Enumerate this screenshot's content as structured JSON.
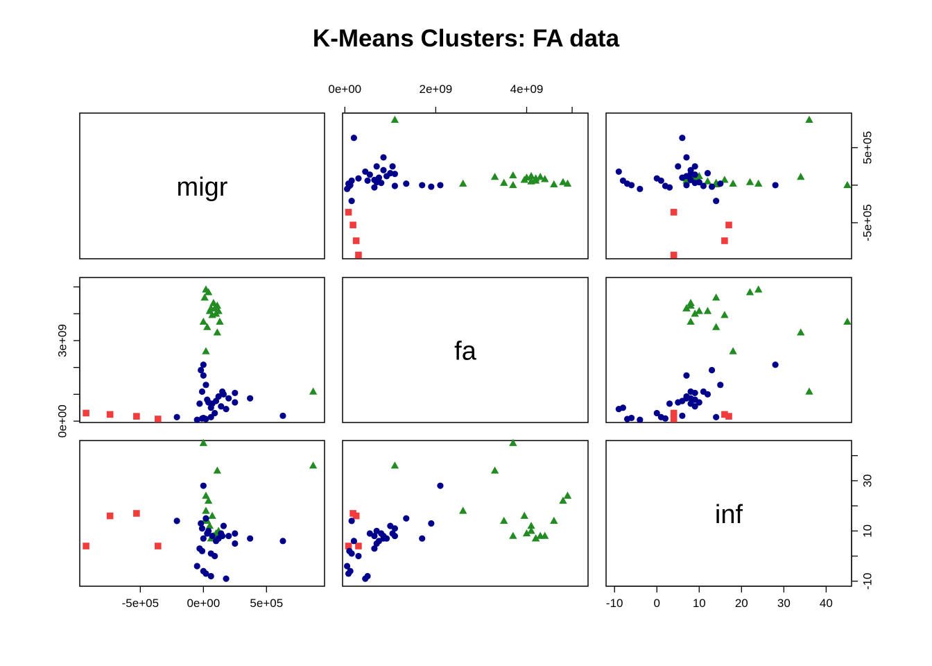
{
  "chart_data": {
    "type": "scatter",
    "title": "K-Means Clusters: FA data",
    "plot_kind": "scatterplot matrix",
    "variables": [
      "migr",
      "fa",
      "inf"
    ],
    "clusters": [
      {
        "id": 1,
        "color": "#00008B",
        "marker": "circle"
      },
      {
        "id": 2,
        "color": "#228B22",
        "marker": "triangle"
      },
      {
        "id": 3,
        "color": "#F03C3C",
        "marker": "square"
      }
    ],
    "ticks": {
      "migr": {
        "values": [
          -500000,
          0,
          500000
        ],
        "labels": [
          "-5e+05",
          "0e+00",
          "5e+05"
        ],
        "side": "bottom,right"
      },
      "fa": {
        "values": [
          0,
          2000000000,
          4000000000
        ],
        "labels": [
          "0e+00",
          "2e+09",
          "4e+09"
        ],
        "side": "top"
      },
      "fa_left": {
        "values": [
          0,
          3000000000
        ],
        "labels": [
          "0e+00",
          "3e+09"
        ],
        "side": "left"
      },
      "inf": {
        "values": [
          -10,
          0,
          10,
          20,
          30,
          40
        ],
        "labels": [
          "-10",
          "0",
          "10",
          "20",
          "30",
          "40"
        ],
        "side": "bottom,right"
      },
      "inf_right_labels": [
        "-10",
        "10",
        "30"
      ]
    },
    "ranges": {
      "migr": [
        -980000,
        960000
      ],
      "fa": [
        -50000000,
        5350000000
      ],
      "inf": [
        -12,
        46
      ]
    },
    "points": [
      {
        "migr": -360000,
        "fa": 80000000,
        "inf": 4,
        "cluster": 3
      },
      {
        "migr": -530000,
        "fa": 180000000,
        "inf": 17,
        "cluster": 3
      },
      {
        "migr": -740000,
        "fa": 250000000,
        "inf": 16,
        "cluster": 3
      },
      {
        "migr": -930000,
        "fa": 300000000,
        "inf": 4,
        "cluster": 3
      },
      {
        "migr": 20000,
        "fa": 4900000000,
        "inf": 24,
        "cluster": 2
      },
      {
        "migr": 40000,
        "fa": 4800000000,
        "inf": 22,
        "cluster": 2
      },
      {
        "migr": 10000,
        "fa": 4600000000,
        "inf": 14,
        "cluster": 2
      },
      {
        "migr": 80000,
        "fa": 4400000000,
        "inf": 8,
        "cluster": 2
      },
      {
        "migr": 60000,
        "fa": 4200000000,
        "inf": 7,
        "cluster": 2
      },
      {
        "migr": 100000,
        "fa": 4000000000,
        "inf": 9,
        "cluster": 2
      },
      {
        "migr": 120000,
        "fa": 4100000000,
        "inf": 10,
        "cluster": 2
      },
      {
        "migr": 90000,
        "fa": 4200000000,
        "inf": 7,
        "cluster": 2
      },
      {
        "migr": 70000,
        "fa": 3950000000,
        "inf": 16,
        "cluster": 2
      },
      {
        "migr": 110000,
        "fa": 4300000000,
        "inf": 8,
        "cluster": 2
      },
      {
        "migr": 50000,
        "fa": 4100000000,
        "inf": 12,
        "cluster": 2
      },
      {
        "migr": 130000,
        "fa": 3700000000,
        "inf": 8,
        "cluster": 2
      },
      {
        "migr": 0,
        "fa": 3700000000,
        "inf": 45,
        "cluster": 2
      },
      {
        "migr": 870000,
        "fa": 1100000000,
        "inf": 36,
        "cluster": 2
      },
      {
        "migr": 30000,
        "fa": 3500000000,
        "inf": 14,
        "cluster": 2
      },
      {
        "migr": 20000,
        "fa": 2600000000,
        "inf": 18,
        "cluster": 2
      },
      {
        "migr": 110000,
        "fa": 3300000000,
        "inf": 34,
        "cluster": 2
      },
      {
        "migr": 0,
        "fa": 2100000000,
        "inf": 28,
        "cluster": 1
      },
      {
        "migr": -20000,
        "fa": 1900000000,
        "inf": 13,
        "cluster": 1
      },
      {
        "migr": 0,
        "fa": 1700000000,
        "inf": 7,
        "cluster": 1
      },
      {
        "migr": 20000,
        "fa": 1350000000,
        "inf": 15,
        "cluster": 1
      },
      {
        "migr": -10000,
        "fa": 1100000000,
        "inf": 11,
        "cluster": 1
      },
      {
        "migr": 30000,
        "fa": 800000000,
        "inf": 9,
        "cluster": 1
      },
      {
        "migr": 70000,
        "fa": 650000000,
        "inf": 8,
        "cluster": 1
      },
      {
        "migr": 100000,
        "fa": 750000000,
        "inf": 6,
        "cluster": 1
      },
      {
        "migr": 120000,
        "fa": 920000000,
        "inf": 7,
        "cluster": 1
      },
      {
        "migr": 140000,
        "fa": 550000000,
        "inf": 9,
        "cluster": 1
      },
      {
        "migr": 160000,
        "fa": 1000000000,
        "inf": 12,
        "cluster": 1
      },
      {
        "migr": -30000,
        "fa": 650000000,
        "inf": 3,
        "cluster": 1
      },
      {
        "migr": 200000,
        "fa": 850000000,
        "inf": 8,
        "cluster": 1
      },
      {
        "migr": 250000,
        "fa": 700000000,
        "inf": 5,
        "cluster": 1
      },
      {
        "migr": 370000,
        "fa": 850000000,
        "inf": 7,
        "cluster": 1
      },
      {
        "migr": 630000,
        "fa": 200000000,
        "inf": 6,
        "cluster": 1
      },
      {
        "migr": -210000,
        "fa": 150000000,
        "inf": 14,
        "cluster": 1
      },
      {
        "migr": -10000,
        "fa": 100000000,
        "inf": 2,
        "cluster": 1
      },
      {
        "migr": 20000,
        "fa": 80000000,
        "inf": -7,
        "cluster": 1
      },
      {
        "migr": 60000,
        "fa": 150000000,
        "inf": 1,
        "cluster": 1
      },
      {
        "migr": 90000,
        "fa": 300000000,
        "inf": 0,
        "cluster": 1
      },
      {
        "migr": 150000,
        "fa": 1100000000,
        "inf": 8,
        "cluster": 1
      },
      {
        "migr": 40000,
        "fa": 700000000,
        "inf": 10,
        "cluster": 1
      },
      {
        "migr": -50000,
        "fa": 50000000,
        "inf": -4,
        "cluster": 1
      },
      {
        "migr": 0,
        "fa": 120000000,
        "inf": -6,
        "cluster": 1
      },
      {
        "migr": 180000,
        "fa": 450000000,
        "inf": -9,
        "cluster": 1
      },
      {
        "migr": 60000,
        "fa": 500000000,
        "inf": -8,
        "cluster": 1
      },
      {
        "migr": 250000,
        "fa": 1050000000,
        "inf": 9,
        "cluster": 1
      }
    ]
  }
}
